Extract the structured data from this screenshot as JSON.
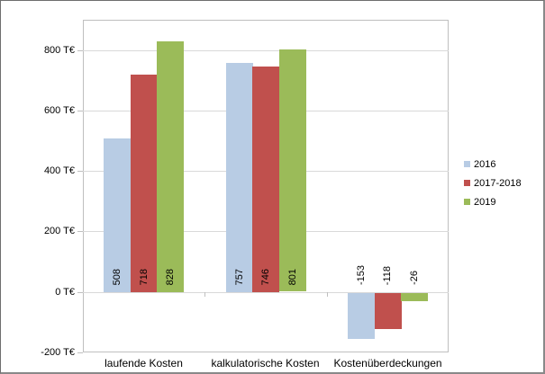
{
  "chart_data": {
    "type": "bar",
    "categories": [
      "laufende Kosten",
      "kalkulatorische Kosten",
      "Kostenüberdeckungen"
    ],
    "series": [
      {
        "name": "2016",
        "color": "#B8CCE4",
        "values": [
          508,
          757,
          -153
        ]
      },
      {
        "name": "2017-2018",
        "color": "#C0504D",
        "values": [
          718,
          746,
          -118
        ]
      },
      {
        "name": "2019",
        "color": "#9BBB59",
        "values": [
          828,
          801,
          -26
        ]
      }
    ],
    "title": "",
    "xlabel": "",
    "ylabel": "",
    "y_axis": {
      "unit": "T€",
      "tick_values": [
        800,
        600,
        400,
        200,
        0,
        -200
      ],
      "tick_labels": [
        "800 T€",
        "600 T€",
        "400 T€",
        "200 T€",
        "0 T€",
        "-200 T€"
      ],
      "ylim": [
        -200,
        900
      ]
    },
    "grid": true,
    "legend_position": "right",
    "data_labels": {
      "show": true,
      "rotation": 90,
      "position": "inside-base"
    },
    "colors": {
      "background": "#FFFFFF",
      "chart_border": "#6E6E6E",
      "plot_border": "#BFBFBF",
      "gridline": "#D9D9D9",
      "text": "#000000"
    }
  }
}
